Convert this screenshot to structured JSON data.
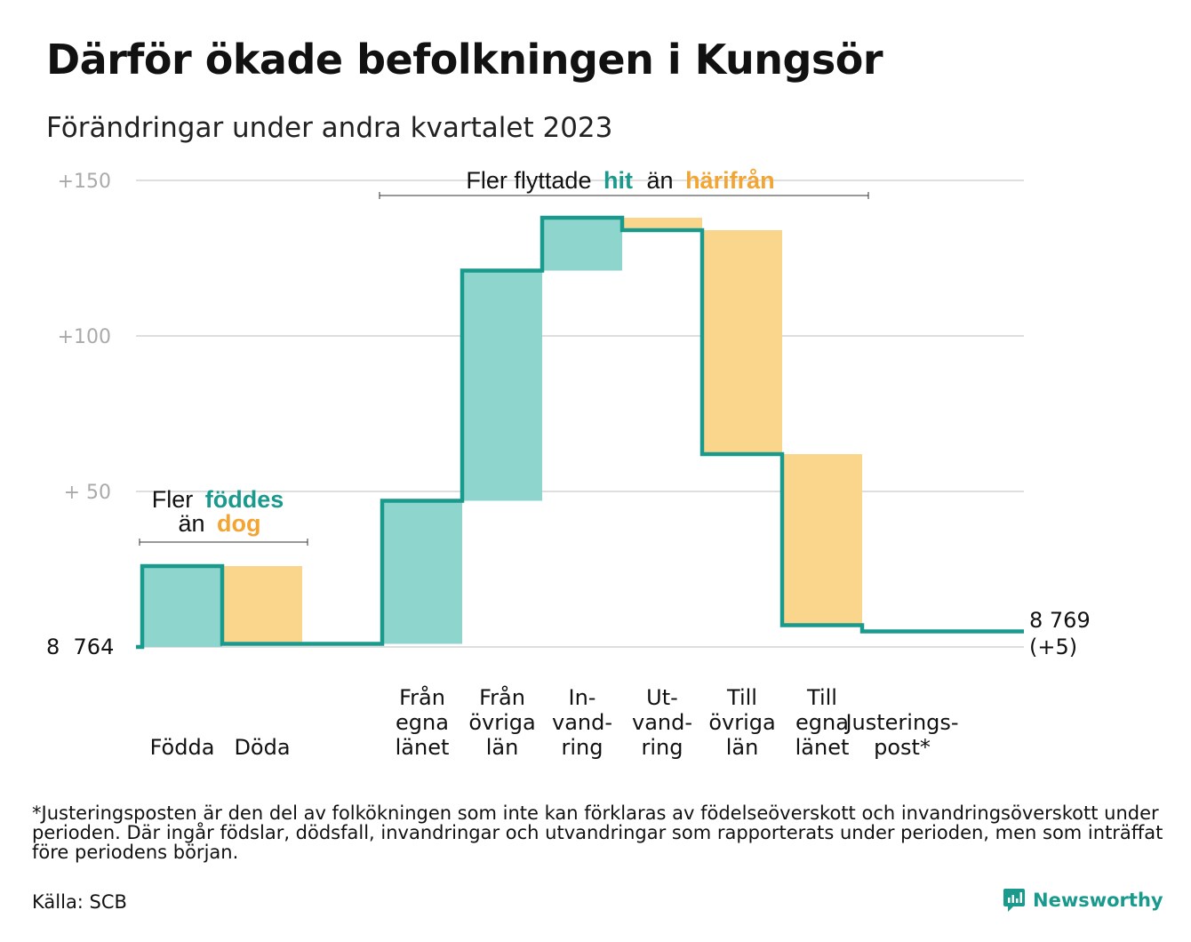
{
  "header": {
    "title": "Därför ökade befolkningen i Kungsör",
    "subtitle": "Förändringar under andra kvartalet 2023"
  },
  "colors": {
    "increase_fill": "#8ed5cd",
    "decrease_fill": "#fad68c",
    "line": "#1a9a8c",
    "teal_text": "#1a9a8c",
    "orange_text": "#f2a533",
    "grid": "#dedede",
    "tick_text": "#aaaaaa"
  },
  "annotations": {
    "natural": {
      "line1_a": "Fler",
      "line1_b": "föddes",
      "line2_a": "än",
      "line2_b": "dog"
    },
    "migration": {
      "a": "Fler flyttade",
      "b": "hit",
      "c": "än",
      "d": "härifrån"
    }
  },
  "labels": {
    "start_value": "8  764",
    "end_value": "8 769",
    "end_change": "(+5)"
  },
  "chart_data": {
    "type": "waterfall",
    "baseline": 8764,
    "end_total": 8769,
    "net_change": 5,
    "ylim": [
      0,
      150
    ],
    "yticks": [
      {
        "value": 50,
        "label": "+  50"
      },
      {
        "value": 100,
        "label": "+100"
      },
      {
        "value": 150,
        "label": "+150"
      }
    ],
    "grid": true,
    "steps": [
      {
        "category": [
          "Födda"
        ],
        "value": 26,
        "kind": "increase"
      },
      {
        "category": [
          "Döda"
        ],
        "value": -25,
        "kind": "decrease"
      },
      {
        "category": [],
        "value": 0,
        "kind": "gap"
      },
      {
        "category": [
          "Från",
          "egna",
          "länet"
        ],
        "value": 46,
        "kind": "increase"
      },
      {
        "category": [
          "Från",
          "övriga",
          "län"
        ],
        "value": 74,
        "kind": "increase"
      },
      {
        "category": [
          "In-",
          "vand-",
          "ring"
        ],
        "value": 17,
        "kind": "increase"
      },
      {
        "category": [
          "Ut-",
          "vand-",
          "ring"
        ],
        "value": -4,
        "kind": "decrease"
      },
      {
        "category": [
          "Till",
          "övriga",
          "län"
        ],
        "value": -72,
        "kind": "decrease"
      },
      {
        "category": [
          "Till",
          "egna",
          "länet"
        ],
        "value": -55,
        "kind": "decrease"
      },
      {
        "category": [
          "Justerings-",
          "post*"
        ],
        "value": -2,
        "kind": "adjustment"
      }
    ]
  },
  "footer": {
    "footnote": "*Justeringsposten är den del av folkökningen som inte kan förklaras av födelseöverskott och invandringsöverskott under perioden. Där ingår födslar, dödsfall, invandringar och utvandringar som rapporterats under perioden, men som inträffat före periodens början.",
    "source": "Källa: SCB",
    "brand": "Newsworthy",
    "brand_icon": "newsworthy-logo-icon"
  }
}
